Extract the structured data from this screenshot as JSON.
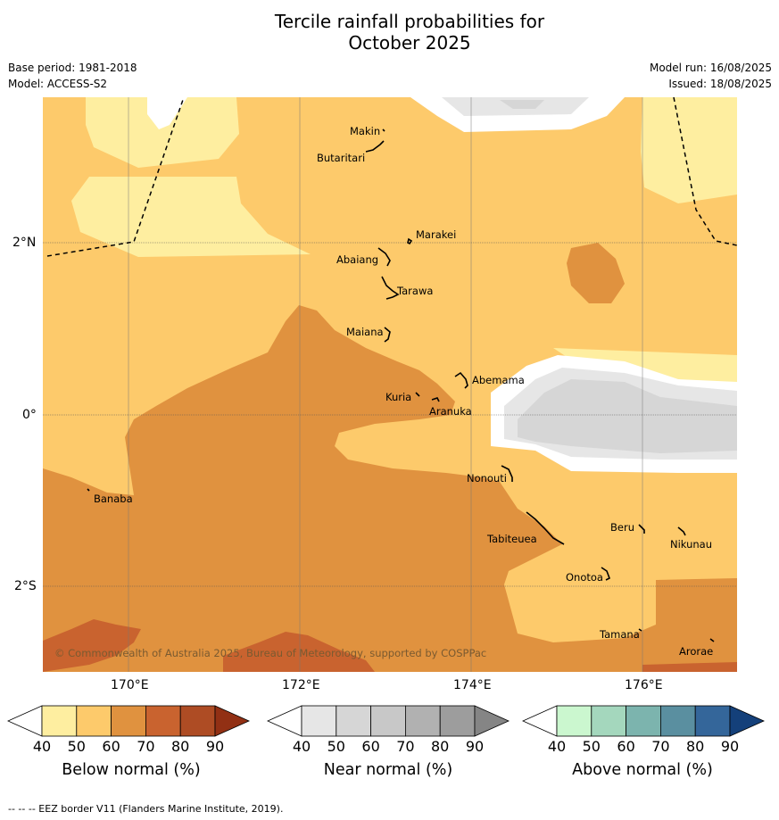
{
  "title_line1": "Tercile rainfall probabilities for",
  "title_line2": "October 2025",
  "base_period": "Base period: 1981-2018",
  "model": "Model: ACCESS-S2",
  "model_run": "Model run: 16/08/2025",
  "issued": "Issued: 18/08/2025",
  "copyright": "© Commonwealth of Australia 2025, Bureau of Meteorology, supported by COSPPac",
  "footnote": "--  --  -- EEZ border V11 (Flanders Marine Institute, 2019).",
  "lon_labels": [
    "170°E",
    "172°E",
    "174°E",
    "176°E"
  ],
  "lat_labels": [
    "2°N",
    "0°",
    "2°S"
  ],
  "places": {
    "makin": "Makin",
    "butaritari": "Butaritari",
    "marakei": "Marakei",
    "abaiang": "Abaiang",
    "tarawa": "Tarawa",
    "maiana": "Maiana",
    "abemama": "Abemama",
    "kuria": "Kuria",
    "aranuka": "Aranuka",
    "nonouti": "Nonouti",
    "banaba": "Banaba",
    "tabiteuea": "Tabiteuea",
    "beru": "Beru",
    "nikunau": "Nikunau",
    "onotoa": "Onotoa",
    "tamana": "Tamana",
    "arorae": "Arorae"
  },
  "colorbars": [
    {
      "label": "Below normal (%)",
      "ticks": [
        "40",
        "50",
        "60",
        "70",
        "80",
        "90"
      ],
      "colors": [
        "#ffffff",
        "#feeea0",
        "#fdca6b",
        "#e0923f",
        "#c9632f",
        "#ae4c24",
        "#923014"
      ]
    },
    {
      "label": "Near normal (%)",
      "ticks": [
        "40",
        "50",
        "60",
        "70",
        "80",
        "90"
      ],
      "colors": [
        "#ffffff",
        "#e6e6e6",
        "#d6d6d6",
        "#c8c8c8",
        "#b1b1b1",
        "#9d9d9d",
        "#858585"
      ]
    },
    {
      "label": "Above normal (%)",
      "ticks": [
        "40",
        "50",
        "60",
        "70",
        "80",
        "90"
      ],
      "colors": [
        "#ffffff",
        "#cbf7cf",
        "#a4d7bd",
        "#7cb4ae",
        "#5a8fa0",
        "#34669a",
        "#14407a"
      ]
    }
  ]
}
